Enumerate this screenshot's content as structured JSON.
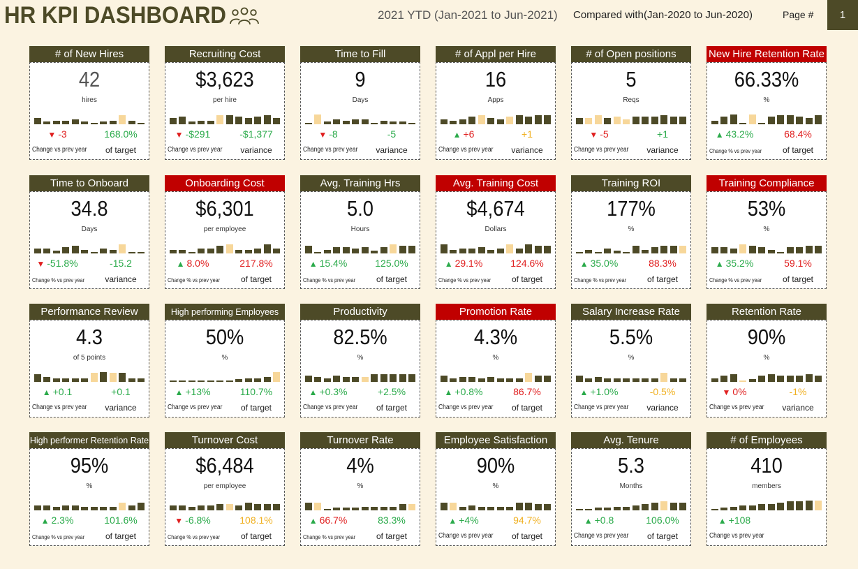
{
  "header": {
    "title": "HR KPI DASHBOARD",
    "title_icon": "people-group-icon",
    "period": "2021 YTD (Jan-2021 to Jun-2021)",
    "compare_label": "Compared with",
    "compare_period": "(Jan-2020 to Jun-2020)",
    "page_label": "Page #",
    "page_number": "1"
  },
  "colors": {
    "header_normal": "#4d4a27",
    "header_alert": "#c00000",
    "bar_dark": "#4d4a27",
    "bar_light": "#f7d79a",
    "good": "#2aaa4a",
    "bad": "#e02020",
    "neutral": "#f0b020",
    "background": "#fbf3e1"
  },
  "cards": [
    {
      "title": "# of New Hires",
      "alert": false,
      "value": "42",
      "unit": "hires",
      "change": "-3",
      "change_dir": "down",
      "change_color": "red",
      "target": "168.0%",
      "target_color": "green",
      "change_label": "Change vs prev year",
      "target_label": "of target",
      "muted": true,
      "bars": [
        0.5,
        0.2,
        0.3,
        0.3,
        0.4,
        0.2,
        0.1,
        0.2,
        0.3,
        0.7,
        0.3,
        0.1
      ],
      "light": [
        9
      ]
    },
    {
      "title": "Recruiting Cost",
      "alert": false,
      "value": "$3,623",
      "unit": "per hire",
      "change": "-$291",
      "change_dir": "down",
      "change_color": "green",
      "target": "-$1,377",
      "target_color": "green",
      "change_label": "Change vs prev year",
      "target_label": "variance",
      "bars": [
        0.5,
        0.6,
        0.2,
        0.3,
        0.3,
        0.7,
        0.7,
        0.6,
        0.5,
        0.6,
        0.7,
        0.5
      ],
      "light": [
        5
      ]
    },
    {
      "title": "Time to Fill",
      "alert": false,
      "value": "9",
      "unit": "Days",
      "change": "-8",
      "change_dir": "down",
      "change_color": "green",
      "target": "-5",
      "target_color": "green",
      "change_label": "Change vs prev year",
      "target_label": "variance",
      "bars": [
        0.1,
        0.8,
        0.2,
        0.4,
        0.3,
        0.4,
        0.4,
        0.1,
        0.3,
        0.2,
        0.2,
        0.1
      ],
      "light": [
        1
      ]
    },
    {
      "title": "# of Appl per Hire",
      "alert": false,
      "value": "16",
      "unit": "Apps",
      "change": "+6",
      "change_dir": "up",
      "change_color": "red",
      "target": "+1",
      "target_color": "amber",
      "change_label": "Change vs prev year",
      "target_label": "variance",
      "bars": [
        0.4,
        0.3,
        0.4,
        0.6,
        0.7,
        0.5,
        0.4,
        0.6,
        0.7,
        0.6,
        0.7,
        0.7
      ],
      "light": [
        4,
        7
      ]
    },
    {
      "title": "# of Open positions",
      "alert": false,
      "value": "5",
      "unit": "Reqs",
      "change": "-5",
      "change_dir": "down",
      "change_color": "red",
      "target": "+1",
      "target_color": "green",
      "change_label": "Change vs prev year",
      "target_label": "variance",
      "bars": [
        0.5,
        0.5,
        0.7,
        0.5,
        0.6,
        0.4,
        0.6,
        0.6,
        0.6,
        0.7,
        0.6,
        0.6
      ],
      "light": [
        1,
        2,
        4,
        5
      ]
    },
    {
      "title": "New Hire Retention Rate",
      "alert": true,
      "value": "66.33%",
      "unit": "%",
      "change": "43.2%",
      "change_dir": "up",
      "change_color": "green",
      "target": "68.4%",
      "target_color": "red",
      "change_label": "Change % vs prev year",
      "target_label": "of target",
      "bars": [
        0.3,
        0.6,
        0.8,
        0.1,
        0.8,
        0.1,
        0.6,
        0.7,
        0.7,
        0.6,
        0.5,
        0.7
      ],
      "light": [
        4
      ]
    },
    {
      "title": "Time to Onboard",
      "alert": false,
      "value": "34.8",
      "unit": "Days",
      "change": "-51.8%",
      "change_dir": "down",
      "change_color": "green",
      "target": "-15.2",
      "target_color": "green",
      "change_label": "Change % vs prev year",
      "target_label": "variance",
      "bars": [
        0.4,
        0.4,
        0.2,
        0.5,
        0.6,
        0.3,
        0.1,
        0.4,
        0.3,
        0.7,
        0.1,
        0.1
      ],
      "light": [
        9
      ]
    },
    {
      "title": "Onboarding Cost",
      "alert": true,
      "value": "$6,301",
      "unit": "per employee",
      "change": "8.0%",
      "change_dir": "up",
      "change_color": "red",
      "target": "217.8%",
      "target_color": "red",
      "change_label": "Change % vs prev year",
      "target_label": "of target",
      "bars": [
        0.3,
        0.3,
        0.1,
        0.4,
        0.4,
        0.6,
        0.7,
        0.3,
        0.3,
        0.4,
        0.7,
        0.4
      ],
      "light": [
        6
      ]
    },
    {
      "title": "Avg. Training Hrs",
      "alert": false,
      "value": "5.0",
      "unit": "Hours",
      "change": "15.4%",
      "change_dir": "up",
      "change_color": "green",
      "target": "125.0%",
      "target_color": "green",
      "change_label": "Change % vs prev year",
      "target_label": "of target",
      "bars": [
        0.6,
        0.1,
        0.3,
        0.5,
        0.5,
        0.4,
        0.5,
        0.2,
        0.5,
        0.7,
        0.6,
        0.6
      ],
      "light": [
        9
      ]
    },
    {
      "title": "Avg. Training Cost",
      "alert": true,
      "value": "$4,674",
      "unit": "Dollars",
      "change": "29.1%",
      "change_dir": "up",
      "change_color": "red",
      "target": "124.6%",
      "target_color": "red",
      "change_label": "Change % vs prev year",
      "target_label": "of target",
      "bars": [
        0.7,
        0.3,
        0.4,
        0.4,
        0.5,
        0.3,
        0.4,
        0.7,
        0.4,
        0.7,
        0.6,
        0.6
      ],
      "light": [
        7
      ]
    },
    {
      "title": "Training ROI",
      "alert": false,
      "value": "177%",
      "unit": "%",
      "change": "35.0%",
      "change_dir": "up",
      "change_color": "green",
      "target": "88.3%",
      "target_color": "red",
      "change_label": "Change % vs prev year",
      "target_label": "of target",
      "bars": [
        0.1,
        0.3,
        0.1,
        0.4,
        0.2,
        0.1,
        0.6,
        0.3,
        0.5,
        0.6,
        0.6,
        0.6
      ],
      "light": [
        11
      ]
    },
    {
      "title": "Training Compliance",
      "alert": true,
      "value": "53%",
      "unit": "%",
      "change": "35.2%",
      "change_dir": "up",
      "change_color": "green",
      "target": "59.1%",
      "target_color": "red",
      "change_label": "Change % vs prev year",
      "target_label": "of target",
      "bars": [
        0.5,
        0.5,
        0.4,
        0.7,
        0.6,
        0.5,
        0.3,
        0.1,
        0.5,
        0.5,
        0.6,
        0.6
      ],
      "light": [
        3
      ]
    },
    {
      "title": "Performance Review",
      "alert": false,
      "value": "4.3",
      "unit": "of 5 points",
      "change": "+0.1",
      "change_dir": "up",
      "change_color": "green",
      "target": "+0.1",
      "target_color": "green",
      "change_label": "Change vs prev year",
      "target_label": "variance",
      "bars": [
        0.6,
        0.4,
        0.3,
        0.3,
        0.3,
        0.3,
        0.7,
        0.8,
        0.7,
        0.7,
        0.3,
        0.3
      ],
      "light": [
        6,
        8
      ]
    },
    {
      "title": "High performing Employees",
      "alert": false,
      "value": "50%",
      "unit": "%",
      "change": "+13%",
      "change_dir": "up",
      "change_color": "green",
      "target": "110.7%",
      "target_color": "green",
      "change_label": "Change vs prev year",
      "target_label": "of target",
      "small_title": true,
      "bars": [
        0.05,
        0.05,
        0.1,
        0.1,
        0.1,
        0.1,
        0.1,
        0.2,
        0.3,
        0.3,
        0.4,
        0.8
      ],
      "light": [
        11
      ]
    },
    {
      "title": "Productivity",
      "alert": false,
      "value": "82.5%",
      "unit": "%",
      "change": "+0.3%",
      "change_dir": "up",
      "change_color": "green",
      "target": "+2.5%",
      "target_color": "green",
      "change_label": "Change vs prev year",
      "target_label": "of target",
      "bars": [
        0.5,
        0.4,
        0.3,
        0.5,
        0.4,
        0.4,
        0.4,
        0.6,
        0.6,
        0.6,
        0.6,
        0.6
      ],
      "light": [
        6
      ]
    },
    {
      "title": "Promotion Rate",
      "alert": true,
      "value": "4.3%",
      "unit": "%",
      "change": "+0.8%",
      "change_dir": "up",
      "change_color": "green",
      "target": "86.7%",
      "target_color": "red",
      "change_label": "Change vs prev year",
      "target_label": "of target",
      "bars": [
        0.5,
        0.3,
        0.4,
        0.4,
        0.3,
        0.4,
        0.3,
        0.3,
        0.3,
        0.7,
        0.5,
        0.5
      ],
      "light": [
        9
      ]
    },
    {
      "title": "Salary Increase Rate",
      "alert": false,
      "value": "5.5%",
      "unit": "%",
      "change": "+1.0%",
      "change_dir": "up",
      "change_color": "green",
      "target": "-0.5%",
      "target_color": "amber",
      "change_label": "Change vs prev year",
      "target_label": "variance",
      "bars": [
        0.5,
        0.3,
        0.4,
        0.3,
        0.3,
        0.3,
        0.3,
        0.3,
        0.3,
        0.7,
        0.3,
        0.3
      ],
      "light": [
        9
      ]
    },
    {
      "title": "Retention Rate",
      "alert": false,
      "value": "90%",
      "unit": "%",
      "change": "0%",
      "change_dir": "down",
      "change_color": "red",
      "target": "-1%",
      "target_color": "amber",
      "change_label": "Change vs prev year",
      "target_label": "variance",
      "bars": [
        0.3,
        0.5,
        0.6,
        0.1,
        0.2,
        0.5,
        0.6,
        0.5,
        0.5,
        0.5,
        0.6,
        0.5
      ],
      "light": [
        3
      ]
    },
    {
      "title": "High performer Retention Rate",
      "alert": false,
      "value": "95%",
      "unit": "%",
      "change": "2.3%",
      "change_dir": "up",
      "change_color": "green",
      "target": "101.6%",
      "target_color": "green",
      "change_label": "Change % vs prev year",
      "target_label": "of target",
      "small_title": true,
      "bars": [
        0.4,
        0.4,
        0.3,
        0.4,
        0.4,
        0.3,
        0.3,
        0.3,
        0.3,
        0.6,
        0.4,
        0.6
      ],
      "light": [
        9
      ]
    },
    {
      "title": "Turnover Cost",
      "alert": false,
      "value": "$6,484",
      "unit": "per employee",
      "change": "-6.8%",
      "change_dir": "down",
      "change_color": "green",
      "target": "108.1%",
      "target_color": "amber",
      "change_label": "Change % vs prev year",
      "target_label": "of target",
      "bars": [
        0.4,
        0.4,
        0.3,
        0.4,
        0.4,
        0.5,
        0.5,
        0.4,
        0.6,
        0.5,
        0.5,
        0.5
      ],
      "light": [
        6
      ]
    },
    {
      "title": "Turnover Rate",
      "alert": false,
      "value": "4%",
      "unit": "%",
      "change": "66.7%",
      "change_dir": "up",
      "change_color": "red",
      "target": "83.3%",
      "target_color": "green",
      "change_label": "Change % vs prev year",
      "target_label": "of target",
      "bars": [
        0.6,
        0.6,
        0.1,
        0.2,
        0.2,
        0.2,
        0.3,
        0.3,
        0.3,
        0.3,
        0.5,
        0.5
      ],
      "light": [
        1,
        11
      ]
    },
    {
      "title": "Employee Satisfaction",
      "alert": false,
      "value": "90%",
      "unit": "%",
      "change": "+4%",
      "change_dir": "up",
      "change_color": "green",
      "target": "94.7%",
      "target_color": "amber",
      "change_label": "Change vs prev year",
      "target_label": "of target",
      "bars": [
        0.6,
        0.6,
        0.3,
        0.4,
        0.3,
        0.3,
        0.3,
        0.3,
        0.6,
        0.6,
        0.5,
        0.5
      ],
      "light": [
        1
      ]
    },
    {
      "title": "Avg. Tenure",
      "alert": false,
      "value": "5.3",
      "unit": "Months",
      "change": "+0.8",
      "change_dir": "up",
      "change_color": "green",
      "target": "106.0%",
      "target_color": "green",
      "change_label": "Change vs prev year",
      "target_label": "of target",
      "bars": [
        0.1,
        0.1,
        0.2,
        0.2,
        0.3,
        0.3,
        0.4,
        0.5,
        0.6,
        0.7,
        0.6,
        0.6
      ],
      "light": [
        9
      ]
    },
    {
      "title": "# of Employees",
      "alert": false,
      "value": "410",
      "unit": "members",
      "change": "+108",
      "change_dir": "up",
      "change_color": "green",
      "target": "",
      "target_color": "green",
      "change_label": "Change vs prev year",
      "target_label": "",
      "bars": [
        0.05,
        0.2,
        0.3,
        0.4,
        0.4,
        0.5,
        0.5,
        0.6,
        0.7,
        0.7,
        0.8,
        0.8
      ],
      "light": [
        11
      ]
    }
  ]
}
